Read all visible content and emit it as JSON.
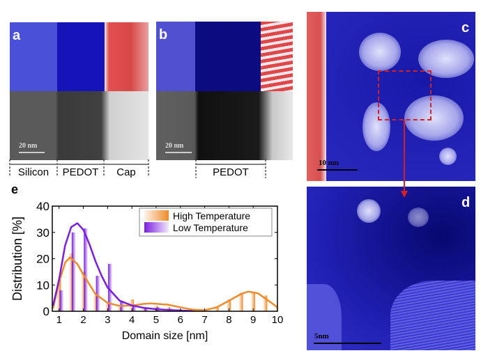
{
  "panels": {
    "a": {
      "label": "a",
      "scale": "20 nm",
      "regions": [
        "Silicon",
        "PEDOT",
        "Cap"
      ]
    },
    "b": {
      "label": "b",
      "scale": "20 nm",
      "regions": [
        "PEDOT"
      ]
    },
    "c": {
      "label": "c",
      "scale": "10 nm"
    },
    "d": {
      "label": "d",
      "scale": "5nm"
    },
    "e": {
      "label": "e"
    }
  },
  "colors": {
    "high": "#f08a2a",
    "low": "#7a1ee0",
    "map_blue": "#2020c0",
    "map_red": "#e04040",
    "arrow": "#d42020"
  },
  "chart_data": {
    "type": "bar",
    "xlabel": "Domain size [nm]",
    "ylabel": "Distribution [%]",
    "xlim": [
      0.72,
      10
    ],
    "ylim": [
      0,
      40
    ],
    "xticks": [
      1,
      2,
      3,
      4,
      5,
      6,
      7,
      8,
      9,
      10
    ],
    "yticks": [
      0,
      10,
      20,
      30,
      40
    ],
    "legend_position": "top-right",
    "grid": false,
    "series": [
      {
        "name": "High Temperature",
        "bin_centers": [
          1,
          1.5,
          2,
          2.5,
          3,
          3.5,
          4,
          4.5,
          5,
          5.5,
          6,
          6.5,
          7,
          7.5,
          8,
          8.5,
          9,
          9.5,
          10
        ],
        "values": [
          12,
          22,
          15,
          6,
          3.5,
          1.5,
          4.5,
          1.5,
          2,
          1.5,
          0.5,
          1,
          0.5,
          2,
          4.5,
          7,
          7.5,
          6,
          2
        ],
        "fit": {
          "x": [
            0.75,
            1,
            1.25,
            1.45,
            1.75,
            2,
            2.5,
            3,
            3.5,
            4,
            4.5,
            4.8,
            5.5,
            6,
            6.5,
            7,
            7.5,
            8,
            8.5,
            8.8,
            9.2,
            9.6,
            10
          ],
          "y": [
            1,
            11,
            18.5,
            20.5,
            18,
            14,
            6.5,
            3.2,
            2,
            2.2,
            2.8,
            3,
            2.5,
            1.5,
            0.6,
            0.4,
            1.5,
            4,
            6.6,
            7.5,
            6.8,
            4.2,
            1.5
          ]
        }
      },
      {
        "name": "Low Temperature",
        "bin_centers": [
          1.1,
          1.6,
          2.1,
          2.6,
          3.1,
          3.6,
          4.1,
          4.6,
          5.1,
          5.6,
          6.1,
          6.6
        ],
        "values": [
          8,
          30,
          31.5,
          13.5,
          18,
          4,
          2,
          1,
          1.5,
          1,
          0.5,
          0.5
        ],
        "fit": {
          "x": [
            0.75,
            1,
            1.25,
            1.5,
            1.75,
            2,
            2.25,
            2.5,
            2.75,
            3,
            3.5,
            4,
            4.5,
            5,
            5.5,
            6,
            6.5
          ],
          "y": [
            2,
            12,
            25,
            32,
            33.5,
            31,
            25.5,
            19,
            13.5,
            9,
            4,
            2.2,
            1.3,
            0.8,
            0.5,
            0.3,
            0.1
          ]
        }
      }
    ]
  }
}
